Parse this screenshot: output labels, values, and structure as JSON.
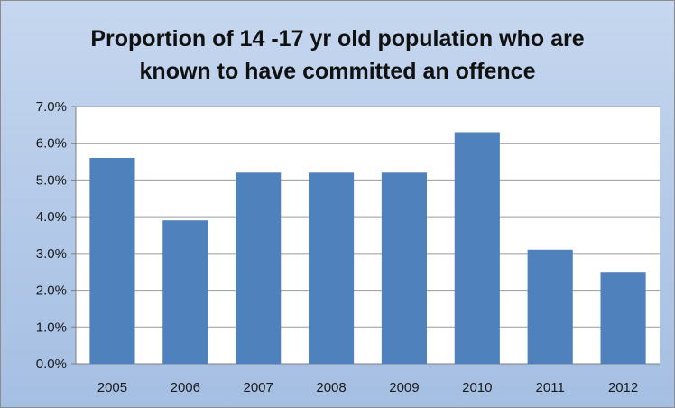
{
  "chart_data": {
    "type": "bar",
    "title_lines": [
      "Proportion of 14 -17 yr old population who are",
      "known to have committed an offence"
    ],
    "categories": [
      "2005",
      "2006",
      "2007",
      "2008",
      "2009",
      "2010",
      "2011",
      "2012"
    ],
    "values": [
      5.6,
      3.9,
      5.2,
      5.2,
      5.2,
      6.3,
      3.1,
      2.5
    ],
    "unit": "%",
    "ylim": [
      0,
      7
    ],
    "yticks": [
      "0.0%",
      "1.0%",
      "2.0%",
      "3.0%",
      "4.0%",
      "5.0%",
      "6.0%",
      "7.0%"
    ],
    "grid": true,
    "legend": "none",
    "colors": {
      "bar": "#4f81bd",
      "plot_background": "#ffffff",
      "grid": "#9a9a9a"
    }
  }
}
